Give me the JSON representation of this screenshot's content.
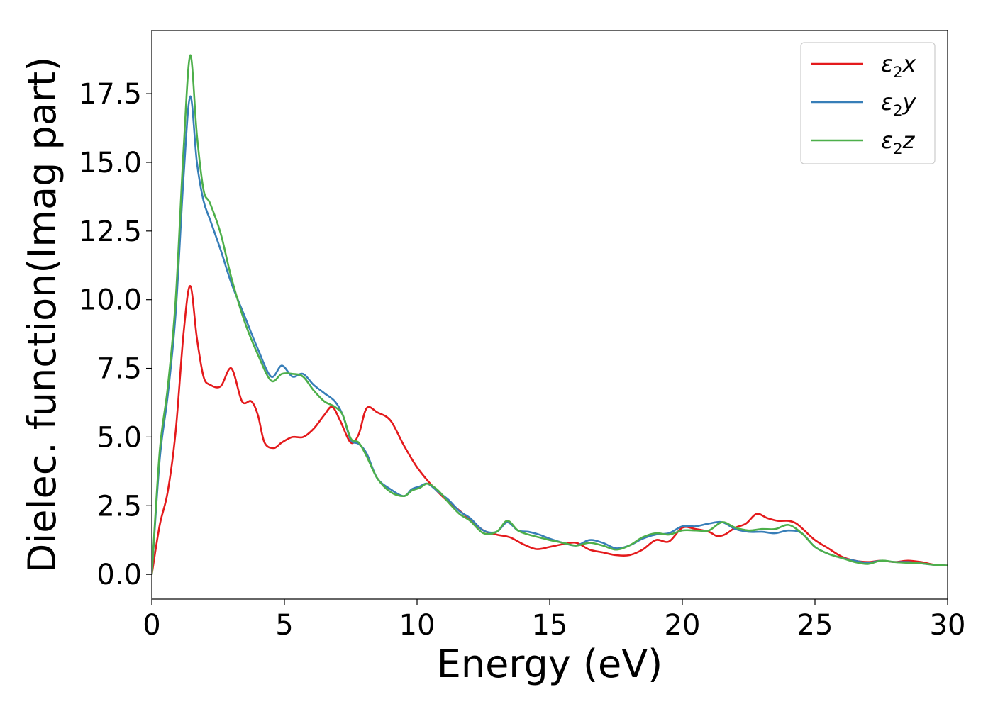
{
  "chart_data": {
    "type": "line",
    "title": "",
    "xlabel": "Energy (eV)",
    "ylabel": "Dielec. function(Imag part)",
    "xlim": [
      0,
      30
    ],
    "ylim": [
      -0.9,
      19.8
    ],
    "x_ticks": [
      0,
      5,
      10,
      15,
      20,
      25,
      30
    ],
    "y_ticks": [
      0.0,
      2.5,
      5.0,
      7.5,
      10.0,
      12.5,
      15.0,
      17.5
    ],
    "x_tick_labels": [
      "0",
      "5",
      "10",
      "15",
      "20",
      "25",
      "30"
    ],
    "y_tick_labels": [
      "0.0",
      "2.5",
      "5.0",
      "7.5",
      "10.0",
      "12.5",
      "15.0",
      "17.5"
    ],
    "grid": false,
    "legend_position": "top-right",
    "series": [
      {
        "name": "ε2x",
        "name_base": "ε",
        "name_sub": "2",
        "name_tail": "x",
        "color": "#e41a1c",
        "x": [
          0,
          0.3,
          0.6,
          0.9,
          1.2,
          1.45,
          1.7,
          1.95,
          2.2,
          2.6,
          3.0,
          3.4,
          3.75,
          4.0,
          4.25,
          4.6,
          4.9,
          5.3,
          5.7,
          6.1,
          6.5,
          6.8,
          7.1,
          7.5,
          7.8,
          8.1,
          8.5,
          9.0,
          9.5,
          10.0,
          10.5,
          11.0,
          11.5,
          12.0,
          12.5,
          13.0,
          13.5,
          14.0,
          14.5,
          15.0,
          15.5,
          16.0,
          16.5,
          17.0,
          17.5,
          18.0,
          18.5,
          19.0,
          19.5,
          20.0,
          20.5,
          21.0,
          21.3,
          21.6,
          22.0,
          22.4,
          22.8,
          23.2,
          23.6,
          24.0,
          24.3,
          24.6,
          25.0,
          25.5,
          26.0,
          26.5,
          27.0,
          27.5,
          28.0,
          28.5,
          29.0,
          29.5,
          30.0
        ],
        "y": [
          0.0,
          1.8,
          3.0,
          5.2,
          8.8,
          10.5,
          8.6,
          7.2,
          6.9,
          6.85,
          7.5,
          6.3,
          6.3,
          5.8,
          4.8,
          4.6,
          4.8,
          5.0,
          5.0,
          5.3,
          5.8,
          6.1,
          5.6,
          4.8,
          5.1,
          6.05,
          5.9,
          5.6,
          4.7,
          3.9,
          3.3,
          2.8,
          2.4,
          2.0,
          1.6,
          1.45,
          1.35,
          1.1,
          0.92,
          1.0,
          1.1,
          1.15,
          0.9,
          0.8,
          0.7,
          0.7,
          0.9,
          1.25,
          1.2,
          1.7,
          1.65,
          1.55,
          1.4,
          1.45,
          1.7,
          1.85,
          2.2,
          2.05,
          1.95,
          1.95,
          1.85,
          1.6,
          1.25,
          0.95,
          0.65,
          0.5,
          0.45,
          0.5,
          0.45,
          0.5,
          0.45,
          0.35,
          0.32
        ]
      },
      {
        "name": "ε2y",
        "name_base": "ε",
        "name_sub": "2",
        "name_tail": "y",
        "color": "#377eb8",
        "x": [
          0,
          0.3,
          0.6,
          0.9,
          1.2,
          1.45,
          1.7,
          1.95,
          2.2,
          2.6,
          3.0,
          3.5,
          4.0,
          4.5,
          4.9,
          5.3,
          5.7,
          6.1,
          6.5,
          6.9,
          7.2,
          7.5,
          7.8,
          8.1,
          8.5,
          9.0,
          9.5,
          9.8,
          10.1,
          10.4,
          10.8,
          11.2,
          11.6,
          12.0,
          12.5,
          13.0,
          13.4,
          13.8,
          14.2,
          14.6,
          15.0,
          15.5,
          16.0,
          16.5,
          17.0,
          17.5,
          18.0,
          18.5,
          19.0,
          19.5,
          20.0,
          20.5,
          21.0,
          21.5,
          22.0,
          22.5,
          23.0,
          23.5,
          24.0,
          24.5,
          25.0,
          25.5,
          26.0,
          26.5,
          27.0,
          27.5,
          28.0,
          28.5,
          29.0,
          29.5,
          30.0
        ],
        "y": [
          0.0,
          4.2,
          6.5,
          9.5,
          14.5,
          17.4,
          15.0,
          13.6,
          12.9,
          11.8,
          10.6,
          9.4,
          8.2,
          7.2,
          7.6,
          7.2,
          7.3,
          6.9,
          6.6,
          6.3,
          5.8,
          4.9,
          4.75,
          4.4,
          3.5,
          3.1,
          2.85,
          3.1,
          3.2,
          3.3,
          3.0,
          2.7,
          2.3,
          2.05,
          1.6,
          1.55,
          1.9,
          1.6,
          1.55,
          1.45,
          1.3,
          1.15,
          1.05,
          1.25,
          1.15,
          0.95,
          1.05,
          1.3,
          1.45,
          1.5,
          1.75,
          1.75,
          1.85,
          1.9,
          1.65,
          1.55,
          1.55,
          1.5,
          1.6,
          1.5,
          1.0,
          0.75,
          0.6,
          0.5,
          0.42,
          0.5,
          0.45,
          0.45,
          0.4,
          0.35,
          0.32
        ]
      },
      {
        "name": "ε2z",
        "name_base": "ε",
        "name_sub": "2",
        "name_tail": "z",
        "color": "#4daf4a",
        "x": [
          0,
          0.3,
          0.6,
          0.9,
          1.2,
          1.45,
          1.7,
          1.95,
          2.2,
          2.6,
          3.0,
          3.5,
          4.0,
          4.5,
          4.9,
          5.3,
          5.7,
          6.1,
          6.5,
          6.9,
          7.2,
          7.5,
          7.8,
          8.1,
          8.5,
          9.0,
          9.5,
          9.8,
          10.1,
          10.4,
          10.8,
          11.2,
          11.6,
          12.0,
          12.5,
          13.0,
          13.4,
          13.8,
          14.2,
          14.6,
          15.0,
          15.5,
          16.0,
          16.5,
          17.0,
          17.5,
          18.0,
          18.5,
          19.0,
          19.5,
          20.0,
          20.5,
          21.0,
          21.5,
          22.0,
          22.5,
          23.0,
          23.5,
          24.0,
          24.5,
          25.0,
          25.5,
          26.0,
          26.5,
          27.0,
          27.5,
          28.0,
          28.5,
          29.0,
          29.5,
          30.0
        ],
        "y": [
          0.0,
          4.5,
          6.8,
          10.0,
          15.5,
          18.9,
          16.0,
          14.0,
          13.5,
          12.4,
          10.8,
          9.2,
          8.0,
          7.05,
          7.3,
          7.3,
          7.2,
          6.7,
          6.3,
          6.1,
          5.8,
          4.95,
          4.8,
          4.3,
          3.5,
          3.0,
          2.85,
          3.05,
          3.15,
          3.3,
          3.05,
          2.6,
          2.2,
          1.95,
          1.5,
          1.55,
          1.95,
          1.6,
          1.45,
          1.35,
          1.25,
          1.15,
          1.05,
          1.15,
          1.05,
          0.9,
          1.05,
          1.35,
          1.5,
          1.45,
          1.6,
          1.6,
          1.6,
          1.9,
          1.7,
          1.6,
          1.65,
          1.65,
          1.8,
          1.5,
          1.0,
          0.75,
          0.6,
          0.45,
          0.38,
          0.5,
          0.45,
          0.42,
          0.4,
          0.35,
          0.32
        ]
      }
    ]
  }
}
